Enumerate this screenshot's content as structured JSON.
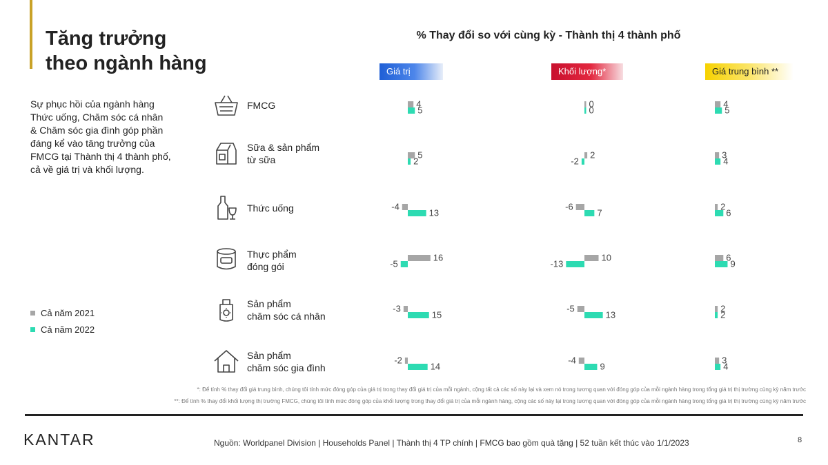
{
  "slide": {
    "title_line1": "Tăng trưởng",
    "title_line2": "theo ngành hàng",
    "description": "Sự phục hồi của ngành hàng Thức uống, Chăm sóc cá nhân & Chăm sóc gia đình góp phần đáng kể vào tăng trưởng của FMCG tại Thành thị 4 thành phố, cả về giá trị và khối lượng.",
    "footnote1": "*: Để tính % thay đổi giá trung bình, chúng tôi tính mức đóng góp của giá trị trong thay đổi giá trị của mỗi ngành, cộng tất cả các số này lại và xem nó trong tương quan với đóng góp của mỗi ngành hàng trong tổng giá trị thị trường cùng kỳ năm trước",
    "footnote2": "**: Để tính % thay đổi khối lượng thị trường FMCG, chúng tôi tính mức đóng góp của khối lượng trong thay đổi giá trị của mỗi ngành hàng, cộng các số này lại trong tương quan với đóng góp của mỗi ngành hàng trong tổng giá trị thị trường cùng kỳ năm trước",
    "source": "Nguồn: Worldpanel Division | Households Panel | Thành thị 4 TP chính | FMCG bao gồm quà tặng | 52 tuần kết thúc vào 1/1/2023",
    "page_number": "8",
    "logo_text": "KANTAR"
  },
  "colors": {
    "series_2021": "#a6a6a6",
    "series_2022": "#2ddbb2",
    "gold_accent": "#c9a227"
  },
  "categories": [
    {
      "label_lines": [
        "FMCG"
      ],
      "icon": "basket-icon"
    },
    {
      "label_lines": [
        "Sữa & sản phẩm",
        "từ sữa"
      ],
      "icon": "milk-carton-icon"
    },
    {
      "label_lines": [
        "Thức uống"
      ],
      "icon": "bottle-glass-icon"
    },
    {
      "label_lines": [
        "Thực phẩm",
        "đóng gói"
      ],
      "icon": "can-icon"
    },
    {
      "label_lines": [
        "Sản phẩm",
        "chăm sóc cá nhân"
      ],
      "icon": "lotion-tube-icon"
    },
    {
      "label_lines": [
        "Sản phẩm",
        "chăm sóc gia đình"
      ],
      "icon": "house-icon"
    }
  ],
  "chart_data": {
    "type": "bar",
    "title": "% Thay đổi so với cùng kỳ - Thành thị 4 thành phố",
    "categories": [
      "FMCG",
      "Sữa & sản phẩm từ sữa",
      "Thức uống",
      "Thực phẩm đóng gói",
      "Sản phẩm chăm sóc cá nhân",
      "Sản phẩm chăm sóc gia đình"
    ],
    "legend": [
      "Cả năm 2021",
      "Cả năm 2022"
    ],
    "panels": [
      {
        "name": "Giá trị",
        "series": [
          {
            "name": "Cả năm 2021",
            "values": [
              4,
              5,
              -4,
              16,
              -3,
              -2
            ]
          },
          {
            "name": "Cả năm 2022",
            "values": [
              5,
              2,
              13,
              -5,
              15,
              14
            ]
          }
        ]
      },
      {
        "name": "Khối lượng*",
        "series": [
          {
            "name": "Cả năm 2021",
            "values": [
              0,
              2,
              -6,
              10,
              -5,
              -4
            ]
          },
          {
            "name": "Cả năm 2022",
            "values": [
              0,
              -2,
              7,
              -13,
              13,
              9
            ]
          }
        ]
      },
      {
        "name": "Giá trung bình **",
        "series": [
          {
            "name": "Cả năm 2021",
            "values": [
              4,
              3,
              2,
              6,
              2,
              3
            ]
          },
          {
            "name": "Cả năm 2022",
            "values": [
              5,
              4,
              6,
              9,
              2,
              4
            ]
          }
        ]
      }
    ]
  }
}
